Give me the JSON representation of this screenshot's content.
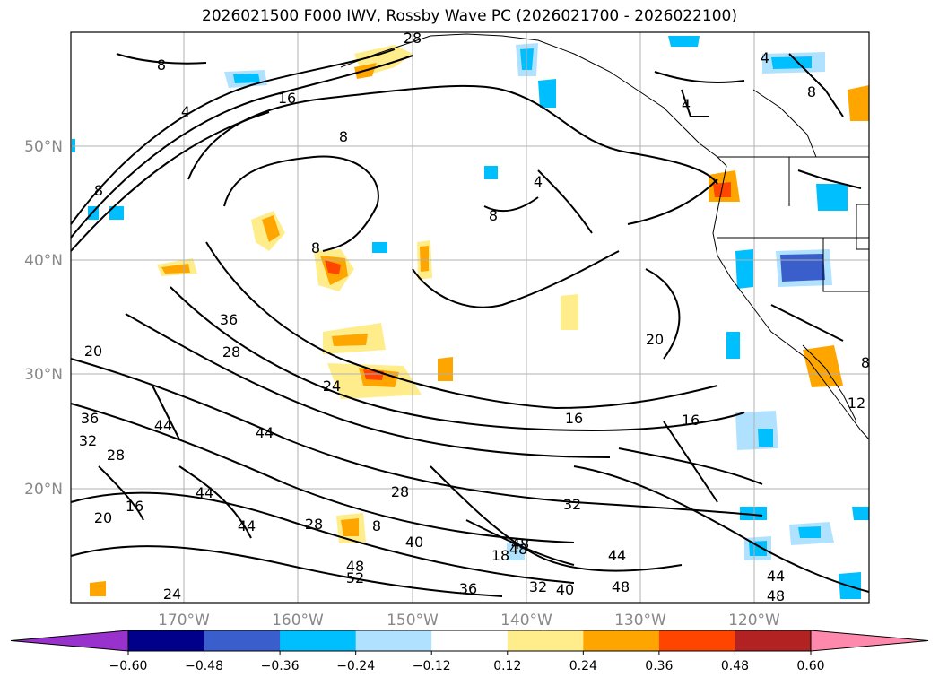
{
  "title": "2026021500 F000 IWV, Rossby Wave PC (2026021700 - 2026022100)",
  "chart_data": {
    "type": "map-contour",
    "title": "2026021500 F000 IWV, Rossby Wave PC (2026021700 - 2026022100)",
    "lat_ticks": [
      "50°N",
      "40°N",
      "30°N",
      "20°N"
    ],
    "lon_ticks": [
      "170°W",
      "160°W",
      "150°W",
      "140°W",
      "130°W",
      "120°W"
    ],
    "grid": true,
    "contour_labels": [
      "8",
      "16",
      "4",
      "8",
      "8",
      "8",
      "8",
      "4",
      "4",
      "4",
      "8",
      "28",
      "36",
      "28",
      "20",
      "24",
      "36",
      "28",
      "44",
      "28",
      "32",
      "20",
      "16",
      "44",
      "44",
      "8",
      "48",
      "52",
      "40",
      "28",
      "32",
      "44",
      "48",
      "40",
      "36",
      "48",
      "44",
      "48",
      "16",
      "20",
      "16",
      "12",
      "8",
      "44",
      "48",
      "24",
      "18",
      "32"
    ],
    "colorbar": {
      "ticks": [
        "−0.60",
        "−0.48",
        "−0.36",
        "−0.24",
        "−0.12",
        "0.12",
        "0.24",
        "0.36",
        "0.48",
        "0.60"
      ],
      "colors": [
        "#9932cc",
        "#00008b",
        "#3a5fcd",
        "#00bfff",
        "#b0e2ff",
        "#ffffff",
        "#ffec8b",
        "#ffa500",
        "#ff4500",
        "#b22222",
        "#ff89ac"
      ],
      "extend": "both"
    }
  }
}
